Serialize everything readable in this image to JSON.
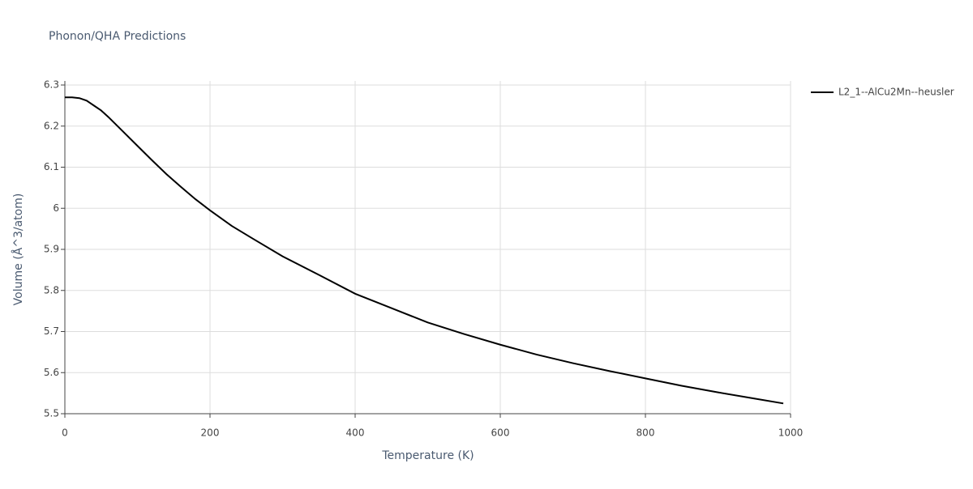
{
  "chart_data": {
    "type": "line",
    "title": "Phonon/QHA Predictions",
    "x_label": "Temperature (K)",
    "y_label": "Volume (Å^3/atom)",
    "x": [
      0,
      10,
      20,
      30,
      40,
      50,
      60,
      80,
      100,
      120,
      140,
      160,
      180,
      200,
      230,
      260,
      300,
      350,
      400,
      450,
      500,
      550,
      600,
      650,
      700,
      750,
      800,
      850,
      900,
      950,
      990
    ],
    "series": [
      {
        "name": "L2_1--AlCu2Mn--heusler",
        "color": "#000000",
        "values": [
          6.27,
          6.27,
          6.268,
          6.262,
          6.25,
          6.238,
          6.222,
          6.187,
          6.152,
          6.117,
          6.083,
          6.052,
          6.022,
          5.995,
          5.957,
          5.925,
          5.883,
          5.838,
          5.792,
          5.757,
          5.722,
          5.694,
          5.668,
          5.644,
          5.623,
          5.604,
          5.586,
          5.568,
          5.552,
          5.537,
          5.525
        ]
      }
    ],
    "xlim": [
      0,
      1000
    ],
    "xticks": [
      0,
      200,
      400,
      600,
      800,
      1000
    ],
    "ylim": [
      5.5,
      6.3
    ],
    "yticks": [
      5.5,
      5.6,
      5.7,
      5.8,
      5.9,
      6,
      6.1,
      6.2,
      6.3
    ],
    "grid": true,
    "legend": "right"
  }
}
